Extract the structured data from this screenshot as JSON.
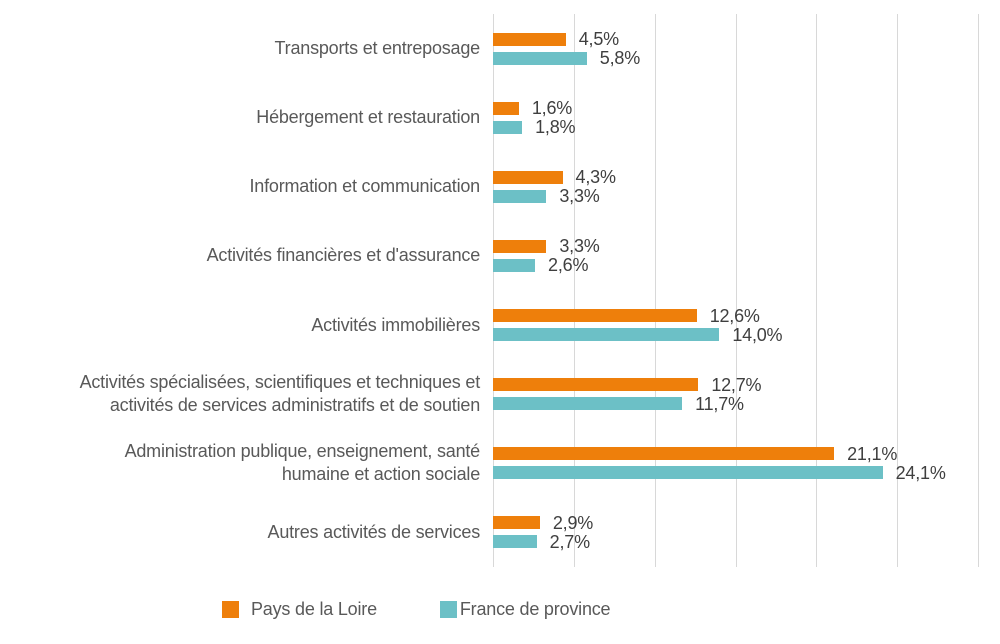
{
  "chart_data": {
    "type": "bar",
    "orientation": "horizontal",
    "title": "",
    "xlabel": "",
    "ylabel": "",
    "xlim": [
      0,
      30
    ],
    "gridline_step": 5,
    "grid": true,
    "legend_position": "bottom",
    "value_format": "percent-comma-decimal",
    "categories": [
      "Transports et entreposage",
      "Hébergement et restauration",
      "Information et communication",
      "Activités financières et d'assurance",
      "Activités immobilières",
      "Activités spécialisées, scientifiques et techniques et\nactivités de services administratifs et de soutien",
      "Administration publique, enseignement, santé\nhumaine et action sociale",
      "Autres activités de services"
    ],
    "series": [
      {
        "name": "Pays de la Loire",
        "color": "#EE7F0B",
        "values": [
          4.5,
          1.6,
          4.3,
          3.3,
          12.6,
          12.7,
          21.1,
          2.9
        ],
        "labels": [
          "4,5%",
          "1,6%",
          "4,3%",
          "3,3%",
          "12,6%",
          "12,7%",
          "21,1%",
          "2,9%"
        ]
      },
      {
        "name": "France de province",
        "color": "#6CC0C6",
        "values": [
          5.8,
          1.8,
          3.3,
          2.6,
          14.0,
          11.7,
          24.1,
          2.7
        ],
        "labels": [
          "5,8%",
          "1,8%",
          "3,3%",
          "2,6%",
          "14,0%",
          "11,7%",
          "24,1%",
          "2,7%"
        ]
      }
    ]
  },
  "colors": {
    "gridline": "#D8D8D8",
    "category_label": "#595959",
    "value_label": "#3F3F3F",
    "background": "#FFFFFF"
  }
}
